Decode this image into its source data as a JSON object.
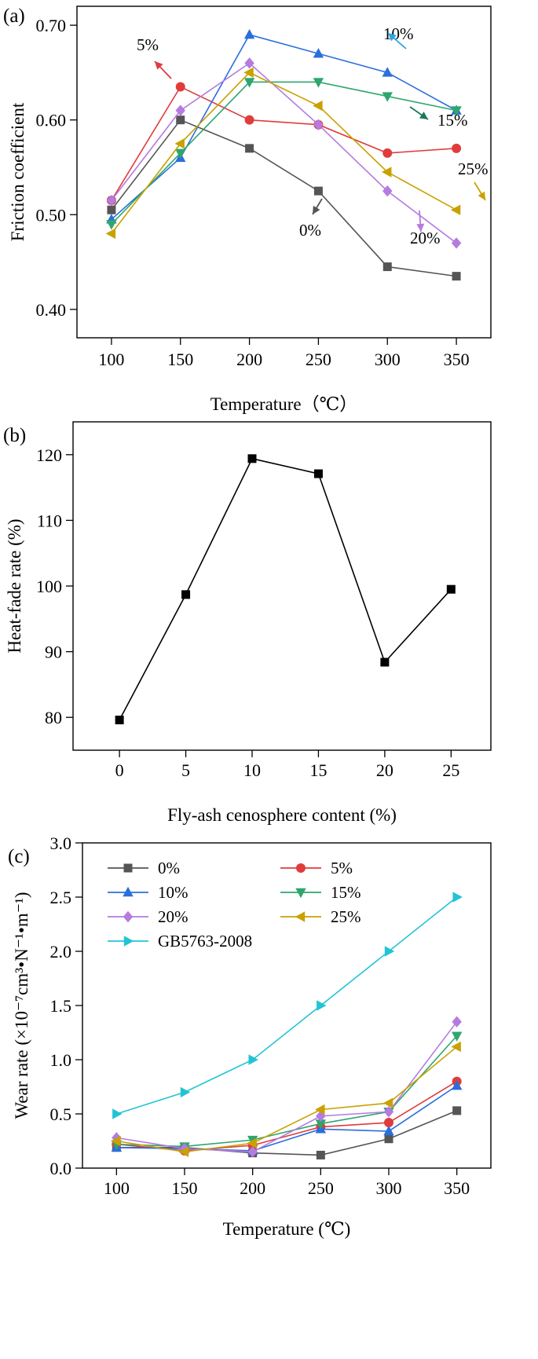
{
  "chart_data": [
    {
      "panel_label": "(a)",
      "type": "line",
      "xlabel": "Temperature（℃）",
      "ylabel": "Friction coefficient",
      "x": [
        100,
        150,
        200,
        250,
        300,
        350
      ],
      "xlim": [
        75,
        375
      ],
      "ylim": [
        0.37,
        0.72
      ],
      "yticks": [
        "0.40",
        "0.50",
        "0.60",
        "0.70"
      ],
      "series": [
        {
          "name": "0%",
          "color": "#555555",
          "marker": "square",
          "values": [
            0.505,
            0.6,
            0.57,
            0.525,
            0.445,
            0.435
          ]
        },
        {
          "name": "5%",
          "color": "#e03c3c",
          "marker": "circle",
          "values": [
            0.515,
            0.635,
            0.6,
            0.595,
            0.565,
            0.57
          ]
        },
        {
          "name": "10%",
          "color": "#2a6fdb",
          "marker": "triangle-up",
          "values": [
            0.495,
            0.56,
            0.69,
            0.67,
            0.65,
            0.61
          ]
        },
        {
          "name": "15%",
          "color": "#2ea66e",
          "marker": "triangle-down",
          "values": [
            0.49,
            0.565,
            0.64,
            0.64,
            0.625,
            0.61
          ]
        },
        {
          "name": "20%",
          "color": "#b57be0",
          "marker": "diamond",
          "values": [
            0.515,
            0.61,
            0.66,
            0.595,
            0.525,
            0.47
          ]
        },
        {
          "name": "25%",
          "color": "#c9a100",
          "marker": "triangle-left",
          "values": [
            0.48,
            0.575,
            0.65,
            0.615,
            0.545,
            0.505
          ]
        }
      ],
      "annotations": [
        {
          "text": "5%",
          "color": "#e03c3c"
        },
        {
          "text": "10%",
          "color": "#2aa6e6"
        },
        {
          "text": "15%",
          "color": "#1a7a5a"
        },
        {
          "text": "25%",
          "color": "#c9a100"
        },
        {
          "text": "0%",
          "color": "#555555"
        },
        {
          "text": "20%",
          "color": "#b57be0"
        }
      ]
    },
    {
      "panel_label": "(b)",
      "type": "line",
      "xlabel": "Fly-ash cenosphere content (%)",
      "ylabel": "Heat-fade rate (%)",
      "x": [
        0,
        5,
        10,
        15,
        20,
        25
      ],
      "xlim": [
        -3.5,
        28
      ],
      "ylim": [
        75,
        125
      ],
      "yticks": [
        "80",
        "90",
        "100",
        "110",
        "120"
      ],
      "series": [
        {
          "name": "",
          "color": "#000000",
          "marker": "square",
          "values": [
            79.6,
            98.7,
            119.4,
            117.1,
            88.4,
            99.5
          ]
        }
      ]
    },
    {
      "panel_label": "(c)",
      "type": "line",
      "xlabel": "Temperature (℃)",
      "ylabel": "Wear rate (×10⁻⁷cm³•N⁻¹•m⁻¹)",
      "x": [
        100,
        150,
        200,
        250,
        300,
        350
      ],
      "xlim": [
        75,
        375
      ],
      "ylim": [
        0,
        3.0
      ],
      "yticks": [
        "0.0",
        "0.5",
        "1.0",
        "1.5",
        "2.0",
        "2.5",
        "3.0"
      ],
      "legend_position": "top-left",
      "series": [
        {
          "name": "0%",
          "color": "#555555",
          "marker": "square",
          "values": [
            0.19,
            0.19,
            0.14,
            0.12,
            0.27,
            0.53
          ]
        },
        {
          "name": "5%",
          "color": "#e03c3c",
          "marker": "circle",
          "values": [
            0.22,
            0.16,
            0.21,
            0.38,
            0.42,
            0.8
          ]
        },
        {
          "name": "10%",
          "color": "#2a6fdb",
          "marker": "triangle-up",
          "values": [
            0.19,
            0.18,
            0.16,
            0.36,
            0.34,
            0.76
          ]
        },
        {
          "name": "15%",
          "color": "#2ea66e",
          "marker": "triangle-down",
          "values": [
            0.22,
            0.2,
            0.26,
            0.41,
            0.52,
            1.22
          ]
        },
        {
          "name": "20%",
          "color": "#b57be0",
          "marker": "diamond",
          "values": [
            0.28,
            0.18,
            0.15,
            0.48,
            0.52,
            1.35
          ]
        },
        {
          "name": "25%",
          "color": "#c9a100",
          "marker": "triangle-left",
          "values": [
            0.25,
            0.15,
            0.23,
            0.54,
            0.6,
            1.12
          ]
        },
        {
          "name": "GB5763-2008",
          "color": "#22c4d4",
          "marker": "triangle-right",
          "values": [
            0.5,
            0.7,
            1.0,
            1.5,
            2.0,
            2.5
          ]
        }
      ]
    }
  ]
}
